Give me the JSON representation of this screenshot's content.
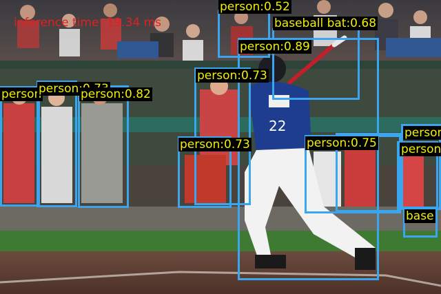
{
  "overlay": {
    "inference_text": "inference time: 19.34 ms",
    "box_color": "#3aa6f0",
    "label_text_color": "#f0f000",
    "label_bg_color": "#000000",
    "inference_text_color": "#e02020"
  },
  "detections": [
    {
      "label": "person:0.52"
    },
    {
      "label": "baseball bat:0.68"
    },
    {
      "label": "person:0.89"
    },
    {
      "label": "person:0.73"
    },
    {
      "label": "person"
    },
    {
      "label": "person:0.73"
    },
    {
      "label": "person:0.82"
    },
    {
      "label": "person:0.73"
    },
    {
      "label": "person:0.75"
    },
    {
      "label": "person"
    },
    {
      "label": "person"
    },
    {
      "label": "base"
    }
  ]
}
